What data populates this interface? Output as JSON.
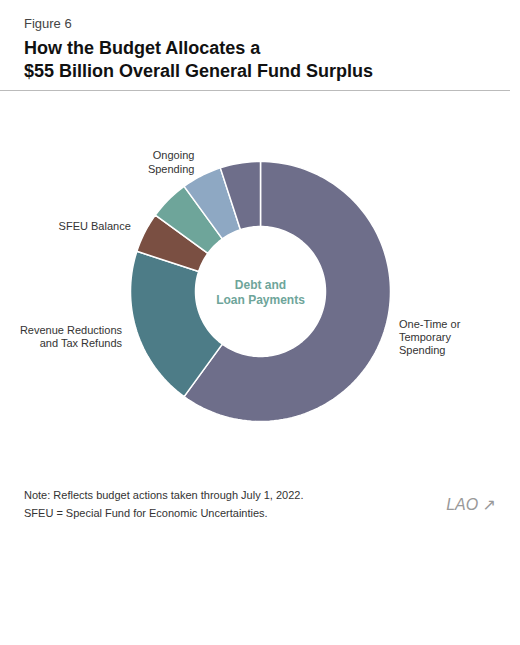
{
  "chart_data": {
    "type": "donut",
    "title": "How the Budget Allocates a\n$55 Billion Overall General Fund Surplus",
    "subtitle": "Figure 6",
    "categories": [
      "One-Time or\nTemporary\nSpending",
      "Revenue Reductions\nand Tax Refunds",
      "SFEU Balance",
      null,
      "Ongoing\nSpending",
      null
    ],
    "values": [
      60,
      20,
      5,
      5,
      5,
      5
    ],
    "colors": [
      "#6e6e8a",
      "#4d7c87",
      "#7a4f42",
      "#6ea59a",
      "#8ea8c3",
      "#6e6e8a"
    ],
    "annotations": [
      "Debt and\nLoan Payments",
      "Note: Reflects budget actions taken through July 1, 2022.",
      "SFEU = Special Fund for Economic Uncertainties.",
      "LAO",
      "↗"
    ]
  }
}
